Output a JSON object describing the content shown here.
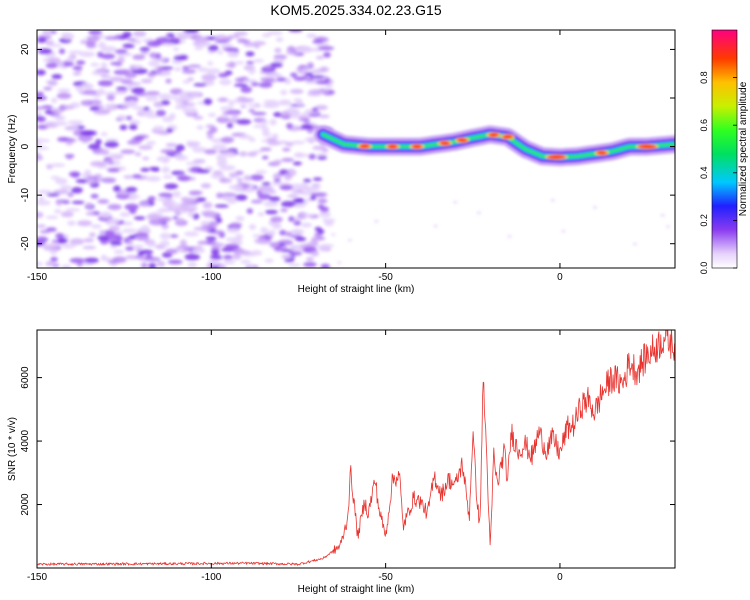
{
  "title": "KOM5.2025.334.02.23.G15",
  "chart_data": [
    {
      "type": "heatmap",
      "xlabel": "Height of straight line (km)",
      "ylabel": "Frequency (Hz)",
      "xlim": [
        -150,
        33
      ],
      "ylim": [
        -25,
        24
      ],
      "xticks": [
        -150,
        -100,
        -50,
        0
      ],
      "yticks": [
        -20,
        -10,
        0,
        10,
        20
      ],
      "colorbar": {
        "label": "Normalized spectral amplitude",
        "range": [
          0,
          1
        ],
        "ticks": [
          0.0,
          0.2,
          0.4,
          0.6,
          0.8
        ]
      },
      "noise_region": {
        "x_range": [
          -150,
          -66
        ],
        "description_values": "scattered low amplitude (0.1-0.4)"
      },
      "ridge": {
        "x": [
          -68,
          -62,
          -55,
          -50,
          -45,
          -40,
          -35,
          -30,
          -25,
          -20,
          -15,
          -10,
          -5,
          0,
          5,
          10,
          15,
          20,
          25,
          30,
          33
        ],
        "frequency": [
          2.5,
          0.5,
          0,
          0,
          0,
          0,
          0.5,
          1.0,
          1.8,
          2.5,
          2.0,
          -0.5,
          -2.0,
          -2.2,
          -2.0,
          -1.5,
          -1.0,
          0,
          0,
          0.3,
          0.5
        ]
      }
    },
    {
      "type": "line",
      "xlabel": "Height of straight line (km)",
      "ylabel": "SNR (10 * v/v)",
      "xlim": [
        -150,
        33
      ],
      "ylim": [
        0,
        7500
      ],
      "xticks": [
        -150,
        -100,
        -50,
        0
      ],
      "yticks": [
        2000,
        4000,
        6000
      ],
      "series": [
        {
          "name": "SNR",
          "color": "#e8332f",
          "x": [
            -150,
            -120,
            -90,
            -75,
            -68,
            -63,
            -61,
            -60,
            -58,
            -56,
            -55,
            -53,
            -52,
            -50,
            -48,
            -46,
            -45,
            -44,
            -42,
            -40,
            -38,
            -36,
            -34,
            -32,
            -30,
            -28,
            -26,
            -25,
            -24,
            -23,
            -22,
            -21,
            -20,
            -19,
            -18,
            -16,
            -15,
            -14,
            -12,
            -10,
            -8,
            -6,
            -4,
            -2,
            0,
            2,
            4,
            6,
            8,
            10,
            12,
            15,
            18,
            20,
            22,
            25,
            28,
            30,
            33
          ],
          "y": [
            120,
            130,
            150,
            120,
            300,
            700,
            1500,
            3000,
            1000,
            2100,
            1700,
            2800,
            1900,
            1000,
            2800,
            2900,
            1300,
            1600,
            2200,
            2100,
            1700,
            2900,
            2300,
            2800,
            2600,
            3300,
            1600,
            4300,
            2500,
            1200,
            6000,
            3500,
            500,
            3600,
            2600,
            3700,
            2700,
            4300,
            3700,
            3900,
            3500,
            4300,
            3700,
            4100,
            3600,
            4400,
            4500,
            5100,
            5300,
            4900,
            5500,
            6000,
            5800,
            6500,
            6200,
            6700,
            7000,
            7300,
            7000
          ]
        }
      ]
    }
  ]
}
